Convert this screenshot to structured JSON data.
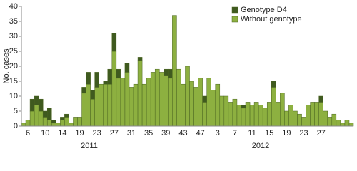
{
  "chart_data": {
    "type": "stacked_bar",
    "y_label": "No. cases",
    "categories": [
      null,
      "6",
      null,
      null,
      null,
      "10",
      null,
      null,
      null,
      "14",
      null,
      null,
      null,
      "19",
      null,
      null,
      null,
      "23",
      null,
      null,
      null,
      "27",
      null,
      null,
      null,
      "31",
      null,
      null,
      null,
      "35",
      null,
      null,
      null,
      "39",
      null,
      null,
      null,
      "43",
      null,
      null,
      null,
      "47",
      null,
      null,
      null,
      "3",
      null,
      null,
      null,
      "7",
      null,
      null,
      null,
      "11",
      null,
      null,
      null,
      "15",
      null,
      null,
      null,
      "19",
      null,
      null,
      null,
      "23",
      null,
      null,
      null,
      "27",
      null,
      null,
      null,
      null,
      null,
      null,
      null
    ],
    "year_labels": [
      "2011",
      "2012"
    ],
    "series": [
      {
        "name": "Without genotype",
        "color": "#8db040",
        "values": [
          1,
          2,
          5,
          7,
          5,
          3,
          2,
          1,
          1,
          2,
          3,
          1,
          3,
          3,
          11,
          14,
          9,
          13,
          14,
          14,
          14,
          25,
          16,
          16,
          18,
          13,
          14,
          22,
          14,
          16,
          18,
          19,
          18,
          17,
          16,
          37,
          19,
          14,
          20,
          15,
          13,
          16,
          8,
          16,
          12,
          14,
          10,
          10,
          8,
          9,
          7,
          6,
          8,
          7,
          8,
          7,
          6,
          8,
          13,
          8,
          11,
          5,
          7,
          5,
          4,
          3,
          7,
          8,
          8,
          8,
          5,
          3,
          4,
          2,
          1,
          2,
          1
        ]
      },
      {
        "name": "Genotype D4",
        "color": "#3f5a1f",
        "values": [
          0,
          0,
          4,
          3,
          4,
          2,
          4,
          1,
          0,
          1,
          1,
          0,
          0,
          0,
          2,
          4,
          3,
          5,
          0,
          1,
          5,
          6,
          3,
          0,
          3,
          0,
          0,
          1,
          0,
          0,
          0,
          0,
          0,
          2,
          3,
          0,
          0,
          0,
          0,
          0,
          0,
          0,
          2,
          0,
          0,
          0,
          0,
          0,
          0,
          0,
          0,
          1,
          0,
          0,
          0,
          0,
          0,
          0,
          2,
          0,
          0,
          0,
          0,
          0,
          0,
          0,
          0,
          0,
          0,
          2,
          0,
          0,
          0,
          0,
          0,
          0,
          0
        ]
      }
    ],
    "ylim": [
      0,
      40
    ],
    "yticks": [
      0,
      5,
      10,
      15,
      20,
      25,
      30,
      35,
      40
    ],
    "grid": false,
    "legend": "top-center"
  }
}
